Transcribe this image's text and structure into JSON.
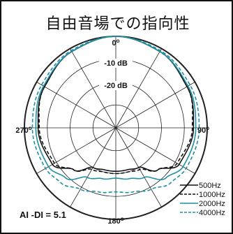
{
  "chart_data": {
    "type": "polar",
    "title": "自由音場での指向性",
    "angle_labels": [
      {
        "angle": 0,
        "label": "0o"
      },
      {
        "angle": 90,
        "label": "90o"
      },
      {
        "angle": 180,
        "label": "180o"
      },
      {
        "angle": 270,
        "label": "270o"
      }
    ],
    "angle_label_text": {
      "0": "0",
      "90": "90",
      "180": "180",
      "270": "270"
    },
    "radial_labels": [
      "-10 dB",
      "-20 dB"
    ],
    "rlim_db": [
      -40,
      0
    ],
    "ring_step_db": 10,
    "spoke_step_deg": 30,
    "grid": true,
    "legend_position": "bottom-right",
    "annotation": "AI -DI = 5.1",
    "series": [
      {
        "name": "500Hz",
        "style": "solid",
        "color": "#111111",
        "angles": [
          0,
          30,
          60,
          90,
          120,
          135,
          150,
          165,
          180,
          195,
          210,
          225,
          240,
          270,
          300,
          330
        ],
        "values": [
          0,
          -1.5,
          -4,
          -6,
          -8,
          -14,
          -20,
          -21,
          -21,
          -21,
          -20,
          -14,
          -8,
          -6,
          -4,
          -1.5
        ]
      },
      {
        "name": "1000Hz",
        "style": "dashed",
        "color": "#111111",
        "angles": [
          0,
          30,
          60,
          90,
          120,
          135,
          150,
          165,
          180,
          195,
          210,
          225,
          240,
          270,
          300,
          330
        ],
        "values": [
          0,
          -1.5,
          -4,
          -6.5,
          -9,
          -14,
          -19,
          -20,
          -20,
          -20,
          -19,
          -14,
          -9,
          -6.5,
          -4,
          -1.5
        ]
      },
      {
        "name": "2000Hz",
        "style": "solid",
        "color": "#1f8fa3",
        "angles": [
          0,
          30,
          60,
          90,
          120,
          135,
          150,
          165,
          180,
          195,
          210,
          225,
          240,
          270,
          300,
          330
        ],
        "values": [
          0,
          -1.5,
          -3.5,
          -5,
          -6,
          -9,
          -15,
          -17,
          -18,
          -17,
          -15,
          -9,
          -6,
          -5,
          -3.5,
          -1.5
        ]
      },
      {
        "name": "4000Hz",
        "style": "dashed",
        "color": "#1f8fa3",
        "angles": [
          0,
          30,
          60,
          90,
          120,
          135,
          150,
          165,
          180,
          195,
          210,
          225,
          240,
          270,
          300,
          330
        ],
        "values": [
          0,
          -1,
          -2.5,
          -3.5,
          -4.5,
          -6,
          -9,
          -11,
          -12,
          -11,
          -9,
          -6,
          -4.5,
          -3.5,
          -2.5,
          -1
        ]
      }
    ]
  }
}
